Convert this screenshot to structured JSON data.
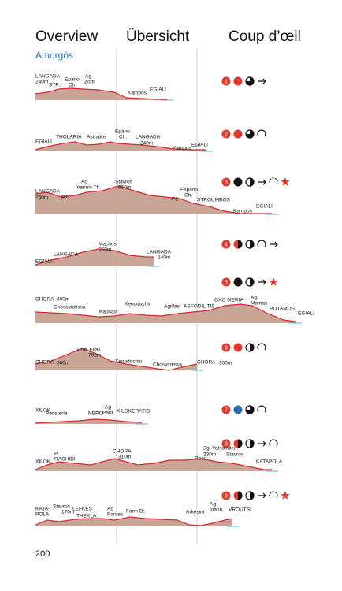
{
  "header": {
    "titles": [
      "Overview",
      "Übersicht",
      "Coup d’œil"
    ],
    "region": "Amorgós"
  },
  "routes": [
    {
      "number": "1",
      "labels": [
        "LANGADA",
        "240m",
        "STR.",
        "Epano",
        "Ch.",
        "Ag",
        "Zoni",
        "Kampos",
        "EGIALI"
      ]
    },
    {
      "number": "2",
      "labels": [
        "EGIALI",
        "THOLARIA",
        "Astratios",
        "Epano",
        "Ch.",
        "LANGADA",
        "240m",
        "Kampos",
        "EGIALI"
      ]
    },
    {
      "number": "3",
      "labels": [
        "LANGADA",
        "240m",
        "P2",
        "Ag",
        "Ioannis Th.",
        "Stavros",
        "660m",
        "Espano",
        "Ch.",
        "P2",
        "STROUMBOS",
        "Kampos",
        "EGIALI"
      ]
    },
    {
      "number": "4",
      "labels": [
        "Machos",
        "560m",
        "LANGADA",
        "LANGADA",
        "240m",
        "EGIALI"
      ]
    },
    {
      "number": "5",
      "labels": [
        "CHORA",
        "300m",
        "Chosoviotissa",
        "Kapsala",
        "Xenodochio",
        "Agrilas",
        "ASFODILITIS",
        "OXO MERIA",
        "Ag.",
        "Mamas",
        "POTAMOS",
        "EGIALI"
      ]
    },
    {
      "number": "6",
      "labels": [
        "Prof. Elias",
        "702m",
        "CHORA",
        "300m",
        "Xenodochio",
        "Chosviotissa",
        "CHORA",
        "300m"
      ]
    },
    {
      "number": "7",
      "labels": [
        "XILOK.",
        "Peristeria",
        "NERO",
        "Ag",
        "Pant.",
        "XILOKERATIDI"
      ]
    },
    {
      "number": "8",
      "labels": [
        "P.",
        "RACHIDI",
        "XILOK.",
        "CHORA",
        "310m",
        "Gg. Valsamitis",
        "230m",
        "Road",
        "Stavros",
        "KATAPOLA"
      ]
    },
    {
      "number": "9",
      "labels": [
        "KATA-",
        "POLA",
        "Stavros",
        "170m",
        "LEFKES",
        "THEKLA",
        "Ag",
        "Pantes",
        "Farm Br.",
        "Arkesini",
        "Ag",
        "Ioann.",
        "VROUTSI"
      ]
    }
  ],
  "page_number": "200"
}
